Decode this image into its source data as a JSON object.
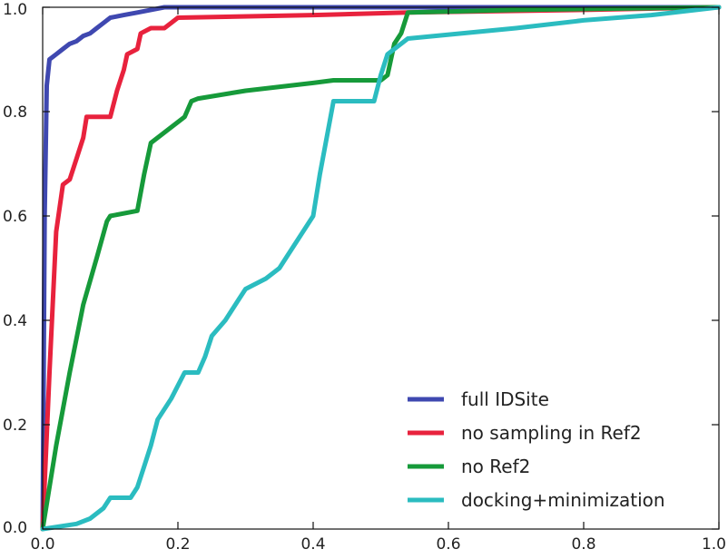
{
  "chart_data": {
    "type": "line",
    "title": "",
    "xlabel": "",
    "ylabel": "",
    "xlim": [
      0.0,
      1.0
    ],
    "ylim": [
      0.0,
      1.0
    ],
    "x_ticks": [
      "0.0",
      "0.2",
      "0.4",
      "0.6",
      "0.8",
      "1.0"
    ],
    "y_ticks": [
      "0.0",
      "0.2",
      "0.4",
      "0.6",
      "0.8",
      "1.0"
    ],
    "grid": false,
    "legend_position": "lower-right",
    "series": [
      {
        "name": "full IDSite",
        "color": "#3f48b0",
        "points": [
          [
            0.0,
            0.0
          ],
          [
            0.003,
            0.6
          ],
          [
            0.006,
            0.85
          ],
          [
            0.01,
            0.9
          ],
          [
            0.02,
            0.91
          ],
          [
            0.03,
            0.92
          ],
          [
            0.04,
            0.93
          ],
          [
            0.05,
            0.935
          ],
          [
            0.06,
            0.945
          ],
          [
            0.07,
            0.95
          ],
          [
            0.08,
            0.96
          ],
          [
            0.09,
            0.97
          ],
          [
            0.1,
            0.98
          ],
          [
            0.12,
            0.985
          ],
          [
            0.14,
            0.99
          ],
          [
            0.16,
            0.995
          ],
          [
            0.18,
            1.0
          ],
          [
            0.3,
            1.0
          ],
          [
            0.6,
            1.0
          ],
          [
            1.0,
            1.0
          ]
        ]
      },
      {
        "name": "no sampling in Ref2",
        "color": "#e8223d",
        "points": [
          [
            0.0,
            0.0
          ],
          [
            0.01,
            0.3
          ],
          [
            0.02,
            0.57
          ],
          [
            0.03,
            0.66
          ],
          [
            0.04,
            0.67
          ],
          [
            0.05,
            0.71
          ],
          [
            0.06,
            0.75
          ],
          [
            0.065,
            0.79
          ],
          [
            0.08,
            0.79
          ],
          [
            0.1,
            0.79
          ],
          [
            0.11,
            0.84
          ],
          [
            0.12,
            0.88
          ],
          [
            0.125,
            0.91
          ],
          [
            0.14,
            0.92
          ],
          [
            0.145,
            0.95
          ],
          [
            0.16,
            0.96
          ],
          [
            0.18,
            0.96
          ],
          [
            0.19,
            0.97
          ],
          [
            0.2,
            0.98
          ],
          [
            0.4,
            0.985
          ],
          [
            0.54,
            0.99
          ],
          [
            0.8,
            0.995
          ],
          [
            1.0,
            1.0
          ]
        ]
      },
      {
        "name": "no Ref2",
        "color": "#169a3a",
        "points": [
          [
            0.0,
            0.0
          ],
          [
            0.02,
            0.16
          ],
          [
            0.04,
            0.3
          ],
          [
            0.06,
            0.43
          ],
          [
            0.08,
            0.52
          ],
          [
            0.095,
            0.59
          ],
          [
            0.1,
            0.6
          ],
          [
            0.14,
            0.61
          ],
          [
            0.15,
            0.68
          ],
          [
            0.16,
            0.74
          ],
          [
            0.18,
            0.76
          ],
          [
            0.2,
            0.78
          ],
          [
            0.21,
            0.79
          ],
          [
            0.22,
            0.82
          ],
          [
            0.23,
            0.825
          ],
          [
            0.3,
            0.84
          ],
          [
            0.4,
            0.855
          ],
          [
            0.43,
            0.86
          ],
          [
            0.5,
            0.86
          ],
          [
            0.51,
            0.87
          ],
          [
            0.52,
            0.93
          ],
          [
            0.53,
            0.95
          ],
          [
            0.54,
            0.99
          ],
          [
            0.7,
            0.995
          ],
          [
            1.0,
            1.0
          ]
        ]
      },
      {
        "name": "docking+minimization",
        "color": "#2bbcc0",
        "points": [
          [
            0.0,
            0.0
          ],
          [
            0.05,
            0.01
          ],
          [
            0.07,
            0.02
          ],
          [
            0.09,
            0.04
          ],
          [
            0.1,
            0.06
          ],
          [
            0.13,
            0.06
          ],
          [
            0.14,
            0.08
          ],
          [
            0.15,
            0.12
          ],
          [
            0.16,
            0.16
          ],
          [
            0.17,
            0.21
          ],
          [
            0.19,
            0.25
          ],
          [
            0.21,
            0.3
          ],
          [
            0.23,
            0.3
          ],
          [
            0.24,
            0.33
          ],
          [
            0.25,
            0.37
          ],
          [
            0.27,
            0.4
          ],
          [
            0.29,
            0.44
          ],
          [
            0.3,
            0.46
          ],
          [
            0.33,
            0.48
          ],
          [
            0.35,
            0.5
          ],
          [
            0.36,
            0.52
          ],
          [
            0.38,
            0.56
          ],
          [
            0.4,
            0.6
          ],
          [
            0.41,
            0.68
          ],
          [
            0.43,
            0.82
          ],
          [
            0.49,
            0.82
          ],
          [
            0.5,
            0.87
          ],
          [
            0.51,
            0.91
          ],
          [
            0.54,
            0.94
          ],
          [
            0.58,
            0.945
          ],
          [
            0.62,
            0.95
          ],
          [
            0.7,
            0.96
          ],
          [
            0.8,
            0.975
          ],
          [
            0.9,
            0.985
          ],
          [
            1.0,
            1.0
          ]
        ]
      }
    ]
  }
}
